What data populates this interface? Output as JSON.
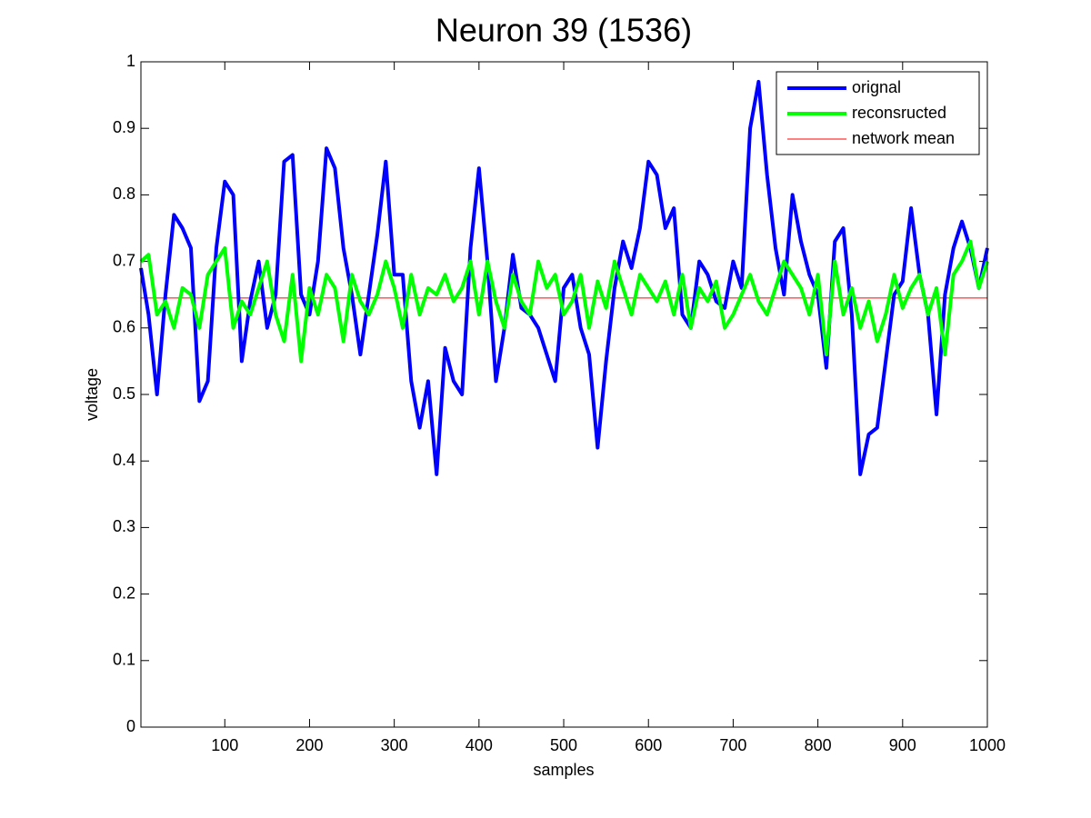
{
  "chart_data": {
    "type": "line",
    "title": "Neuron 39 (1536)",
    "x_label": "samples",
    "y_label": "voltage",
    "x": [
      1,
      10,
      20,
      30,
      40,
      50,
      60,
      70,
      80,
      90,
      100,
      110,
      120,
      130,
      140,
      150,
      160,
      170,
      180,
      190,
      200,
      210,
      220,
      230,
      240,
      250,
      260,
      270,
      280,
      290,
      300,
      310,
      320,
      330,
      340,
      350,
      360,
      370,
      380,
      390,
      400,
      410,
      420,
      430,
      440,
      450,
      460,
      470,
      480,
      490,
      500,
      510,
      520,
      530,
      540,
      550,
      560,
      570,
      580,
      590,
      600,
      610,
      620,
      630,
      640,
      650,
      660,
      670,
      680,
      690,
      700,
      710,
      720,
      730,
      740,
      750,
      760,
      770,
      780,
      790,
      800,
      810,
      820,
      830,
      840,
      850,
      860,
      870,
      880,
      890,
      900,
      910,
      920,
      930,
      940,
      950,
      960,
      970,
      980,
      990,
      1000
    ],
    "series": [
      {
        "name": "orignal",
        "color": "#0000ff",
        "width": 4,
        "values": [
          0.69,
          0.62,
          0.5,
          0.65,
          0.77,
          0.75,
          0.72,
          0.49,
          0.52,
          0.72,
          0.82,
          0.8,
          0.55,
          0.64,
          0.7,
          0.6,
          0.65,
          0.85,
          0.86,
          0.65,
          0.62,
          0.7,
          0.87,
          0.84,
          0.72,
          0.65,
          0.56,
          0.65,
          0.74,
          0.85,
          0.68,
          0.68,
          0.52,
          0.45,
          0.52,
          0.38,
          0.57,
          0.52,
          0.5,
          0.72,
          0.84,
          0.7,
          0.52,
          0.6,
          0.71,
          0.63,
          0.62,
          0.6,
          0.56,
          0.52,
          0.66,
          0.68,
          0.6,
          0.56,
          0.42,
          0.55,
          0.66,
          0.73,
          0.69,
          0.75,
          0.85,
          0.83,
          0.75,
          0.78,
          0.62,
          0.6,
          0.7,
          0.68,
          0.64,
          0.63,
          0.7,
          0.66,
          0.9,
          0.97,
          0.83,
          0.72,
          0.65,
          0.8,
          0.73,
          0.68,
          0.65,
          0.54,
          0.73,
          0.75,
          0.62,
          0.38,
          0.44,
          0.45,
          0.55,
          0.65,
          0.67,
          0.78,
          0.68,
          0.62,
          0.47,
          0.65,
          0.72,
          0.76,
          0.72,
          0.66,
          0.72
        ]
      },
      {
        "name": "reconsructed",
        "color": "#00ff00",
        "width": 4,
        "values": [
          0.7,
          0.71,
          0.62,
          0.64,
          0.6,
          0.66,
          0.65,
          0.6,
          0.68,
          0.7,
          0.72,
          0.6,
          0.64,
          0.62,
          0.66,
          0.7,
          0.62,
          0.58,
          0.68,
          0.55,
          0.66,
          0.62,
          0.68,
          0.66,
          0.58,
          0.68,
          0.64,
          0.62,
          0.65,
          0.7,
          0.66,
          0.6,
          0.68,
          0.62,
          0.66,
          0.65,
          0.68,
          0.64,
          0.66,
          0.7,
          0.62,
          0.7,
          0.64,
          0.6,
          0.68,
          0.64,
          0.62,
          0.7,
          0.66,
          0.68,
          0.62,
          0.64,
          0.68,
          0.6,
          0.67,
          0.63,
          0.7,
          0.66,
          0.62,
          0.68,
          0.66,
          0.64,
          0.67,
          0.62,
          0.68,
          0.6,
          0.66,
          0.64,
          0.67,
          0.6,
          0.62,
          0.65,
          0.68,
          0.64,
          0.62,
          0.66,
          0.7,
          0.68,
          0.66,
          0.62,
          0.68,
          0.56,
          0.7,
          0.62,
          0.66,
          0.6,
          0.64,
          0.58,
          0.62,
          0.68,
          0.63,
          0.66,
          0.68,
          0.62,
          0.66,
          0.56,
          0.68,
          0.7,
          0.73,
          0.66,
          0.7
        ]
      },
      {
        "name": "network mean",
        "color": "#ff0000",
        "width": 1,
        "x": [
          1,
          1000
        ],
        "values": [
          0.645,
          0.645
        ]
      }
    ],
    "xlim": [
      1,
      1000
    ],
    "xticks": [
      100,
      200,
      300,
      400,
      500,
      600,
      700,
      800,
      900,
      1000
    ],
    "ylim": [
      0,
      1
    ],
    "yticks": [
      0,
      0.1,
      0.2,
      0.3,
      0.4,
      0.5,
      0.6,
      0.7,
      0.8,
      0.9,
      1
    ],
    "grid": false,
    "legend": "upper right"
  }
}
